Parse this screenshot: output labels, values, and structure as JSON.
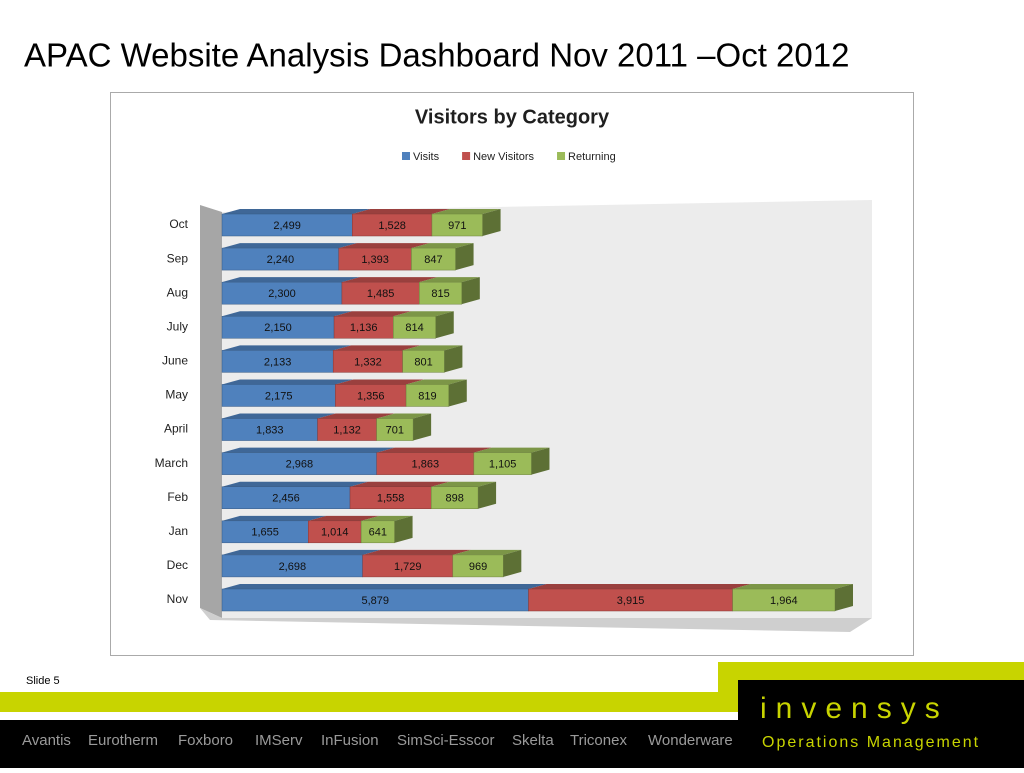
{
  "slide": {
    "title": "APAC Website Analysis Dashboard Nov 2011 –Oct 2012",
    "slide_number": "Slide 5",
    "brands": [
      "Avantis",
      "Eurotherm",
      "Foxboro",
      "IMServ",
      "InFusion",
      "SimSci-Esscor",
      "Skelta",
      "Triconex",
      "Wonderware"
    ],
    "logo": "invensys",
    "tagline": "Operations Management"
  },
  "chart_data": {
    "type": "bar",
    "orientation": "horizontal",
    "stacked": true,
    "title": "Visitors by Category",
    "categories": [
      "Oct",
      "Sep",
      "Aug",
      "July",
      "June",
      "May",
      "April",
      "March",
      "Feb",
      "Jan",
      "Dec",
      "Nov"
    ],
    "series": [
      {
        "name": "Visits",
        "color": "#4f81bd",
        "values": [
          2499,
          2240,
          2300,
          2150,
          2133,
          2175,
          1833,
          2968,
          2456,
          1655,
          2698,
          5879
        ],
        "value_labels": [
          "2,499",
          "2,240",
          "2,300",
          "2,150",
          "2,133",
          "2,175",
          "1,833",
          "2,968",
          "2,456",
          "1,655",
          "2,698",
          "5,879"
        ]
      },
      {
        "name": "New Visitors",
        "color": "#c0504d",
        "values": [
          1528,
          1393,
          1485,
          1136,
          1332,
          1356,
          1132,
          1863,
          1558,
          1014,
          1729,
          3915
        ],
        "value_labels": [
          "1,528",
          "1,393",
          "1,485",
          "1,136",
          "1,332",
          "1,356",
          "1,132",
          "1,863",
          "1,558",
          "1,014",
          "1,729",
          "3,915"
        ]
      },
      {
        "name": "Returning",
        "color": "#9bbb59",
        "values": [
          971,
          847,
          815,
          814,
          801,
          819,
          701,
          1105,
          898,
          641,
          969,
          1964
        ],
        "value_labels": [
          "971",
          "847",
          "815",
          "814",
          "801",
          "819",
          "701",
          "1,105",
          "898",
          "641",
          "969",
          "1,964"
        ]
      }
    ]
  }
}
